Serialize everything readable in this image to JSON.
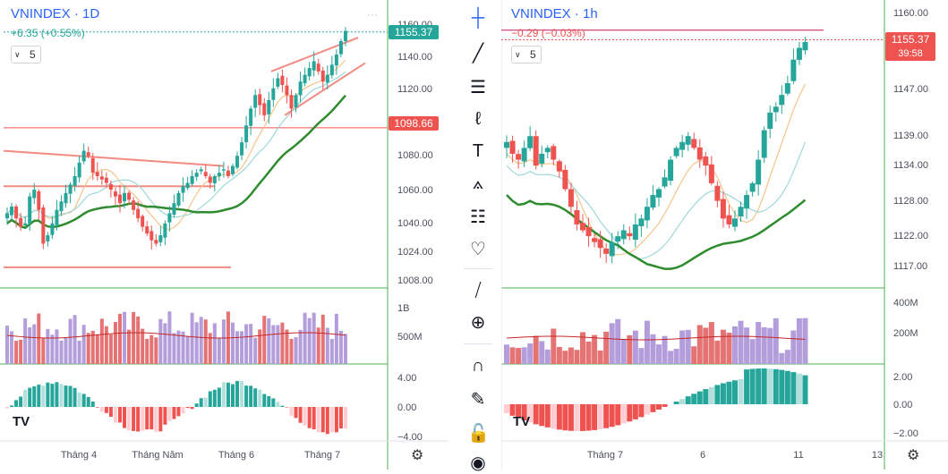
{
  "colors": {
    "up": "#26a69a",
    "down": "#ef5350",
    "up_teal_hist": "#26a69a",
    "vol_up": "#b39ddb",
    "vol_down": "#e57373",
    "ma_fast": "#f5c48a",
    "ma_mid": "#9fd7d8",
    "ma_slow": "#2e8b2e",
    "price_badge_left": "#26a69a",
    "price_badge_right": "#ef5350",
    "level_badge": "#ef5350",
    "grid": "#e8ebf0",
    "axis_text": "#4a4f5a",
    "title_blue": "#2962ff"
  },
  "left_chart": {
    "symbol": "VNINDEX",
    "sep": "·",
    "timeframe": "1D",
    "change": "+6.35 (+0.55%)",
    "interval_value": "5",
    "menu_icon": "ellipsis-icon",
    "price_axis": [
      "1160.00",
      "1140.00",
      "1120.00",
      "1080.00",
      "1060.00",
      "1040.00",
      "1024.00",
      "1008.00"
    ],
    "last_price": "1155.37",
    "level_price": "1098.66",
    "volume_axis": [
      "1B",
      "500M"
    ],
    "osc_axis": [
      "4.00",
      "0.00",
      "−4.00"
    ],
    "time_axis": [
      "Tháng 4",
      "Tháng Năm",
      "Tháng 6",
      "Tháng 7"
    ],
    "chart_data": {
      "type": "candlestick",
      "approx_series": "daily candles rising from ~1030 to ~1155",
      "ylim": [
        1008,
        1165
      ],
      "last": 1155.37,
      "horizontal_lines": [
        1098.66,
        1064,
        1016
      ]
    }
  },
  "right_chart": {
    "symbol": "VNINDEX",
    "sep": "·",
    "timeframe": "1h",
    "change": "−0.29 (−0.03%)",
    "interval_value": "5",
    "price_axis": [
      "1160.00",
      "1147.00",
      "1139.00",
      "1134.00",
      "1128.00",
      "1122.00",
      "1117.00"
    ],
    "last_price": "1155.37",
    "countdown": "39:58",
    "volume_axis": [
      "400M",
      "200M"
    ],
    "osc_axis": [
      "2.00",
      "0.00",
      "−2.00"
    ],
    "time_axis": [
      "Tháng 7",
      "6",
      "11",
      "13"
    ],
    "chart_data": {
      "type": "candlestick",
      "ylim": [
        1114,
        1162
      ],
      "last": 1155.37
    }
  },
  "toolbar": {
    "tools": [
      "crosshair-icon",
      "trend-line-icon",
      "fib-lines-icon",
      "brush-icon",
      "text-icon",
      "pattern-icon",
      "measure-icon",
      "heart-icon",
      "ruler-icon",
      "zoom-in-icon",
      "magnet-icon",
      "lock-draw-icon",
      "lock-icon",
      "eye-icon"
    ]
  },
  "footer": {
    "logo_text": "TV",
    "settings_icon": "gear-icon"
  }
}
